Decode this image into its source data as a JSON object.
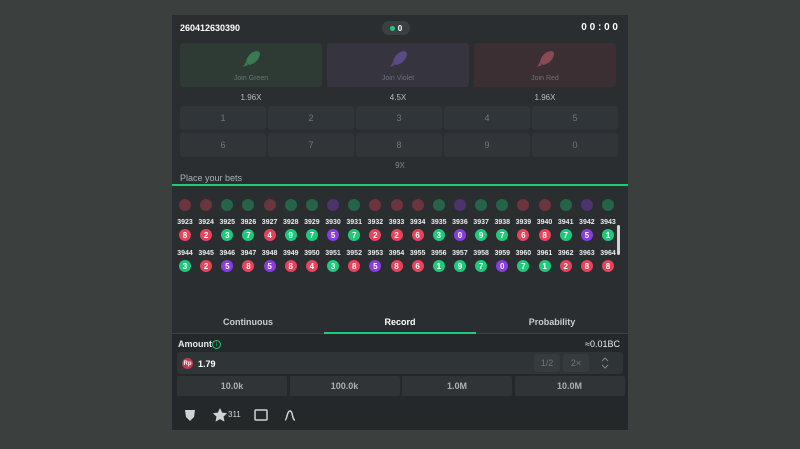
{
  "header": {
    "round_id": "260412630390",
    "online_count": "0",
    "timer": "0 0 : 0 0"
  },
  "join_buttons": [
    {
      "label": "Join Green",
      "multiplier": "1.96X",
      "color": "green"
    },
    {
      "label": "Join Violet",
      "multiplier": "4.5X",
      "color": "violet"
    },
    {
      "label": "Join Red",
      "multiplier": "1.96X",
      "color": "red"
    }
  ],
  "number_grid": {
    "rows": [
      [
        "1",
        "2",
        "3",
        "4",
        "5"
      ],
      [
        "6",
        "7",
        "8",
        "9",
        "0"
      ]
    ],
    "multiplier": "9X"
  },
  "place_bets": "Place your bets",
  "history": {
    "rows": [
      {
        "items": [
          {
            "issue": "3923",
            "result": 8,
            "color": "red"
          },
          {
            "issue": "3924",
            "result": 2,
            "color": "red"
          },
          {
            "issue": "3925",
            "result": 3,
            "color": "green"
          },
          {
            "issue": "3926",
            "result": 7,
            "color": "green"
          },
          {
            "issue": "3927",
            "result": 4,
            "color": "red"
          },
          {
            "issue": "3928",
            "result": 9,
            "color": "green"
          },
          {
            "issue": "3929",
            "result": 7,
            "color": "green"
          },
          {
            "issue": "3930",
            "result": 5,
            "color": "violet"
          },
          {
            "issue": "3931",
            "result": 7,
            "color": "green"
          },
          {
            "issue": "3932",
            "result": 2,
            "color": "red"
          },
          {
            "issue": "3933",
            "result": 2,
            "color": "red"
          },
          {
            "issue": "3934",
            "result": 6,
            "color": "red"
          },
          {
            "issue": "3935",
            "result": 3,
            "color": "green"
          },
          {
            "issue": "3936",
            "result": 0,
            "color": "violet"
          },
          {
            "issue": "3937",
            "result": 9,
            "color": "green"
          },
          {
            "issue": "3938",
            "result": 7,
            "color": "green"
          },
          {
            "issue": "3939",
            "result": 6,
            "color": "red"
          },
          {
            "issue": "3940",
            "result": 8,
            "color": "red"
          },
          {
            "issue": "3941",
            "result": 7,
            "color": "green"
          },
          {
            "issue": "3942",
            "result": 5,
            "color": "violet"
          },
          {
            "issue": "3943",
            "result": 1,
            "color": "green"
          }
        ]
      },
      {
        "items": [
          {
            "issue": "3944",
            "result": 3,
            "color": "green"
          },
          {
            "issue": "3945",
            "result": 2,
            "color": "red"
          },
          {
            "issue": "3946",
            "result": 5,
            "color": "violet"
          },
          {
            "issue": "3947",
            "result": 8,
            "color": "red"
          },
          {
            "issue": "3948",
            "result": 5,
            "color": "violet"
          },
          {
            "issue": "3949",
            "result": 8,
            "color": "red"
          },
          {
            "issue": "3950",
            "result": 4,
            "color": "red"
          },
          {
            "issue": "3951",
            "result": 3,
            "color": "green"
          },
          {
            "issue": "3952",
            "result": 8,
            "color": "red"
          },
          {
            "issue": "3953",
            "result": 5,
            "color": "violet"
          },
          {
            "issue": "3954",
            "result": 8,
            "color": "red"
          },
          {
            "issue": "3955",
            "result": 6,
            "color": "red"
          },
          {
            "issue": "3956",
            "result": 1,
            "color": "green"
          },
          {
            "issue": "3957",
            "result": 9,
            "color": "green"
          },
          {
            "issue": "3958",
            "result": 7,
            "color": "green"
          },
          {
            "issue": "3959",
            "result": 0,
            "color": "violet"
          },
          {
            "issue": "3960",
            "result": 7,
            "color": "green"
          },
          {
            "issue": "3961",
            "result": 1,
            "color": "green"
          },
          {
            "issue": "3962",
            "result": 2,
            "color": "red"
          },
          {
            "issue": "3963",
            "result": 8,
            "color": "red"
          },
          {
            "issue": "3964",
            "result": 8,
            "color": "red"
          }
        ]
      }
    ]
  },
  "tabs": {
    "items": [
      "Continuous",
      "Record",
      "Probability"
    ],
    "active": 1
  },
  "amount": {
    "label": "Amount",
    "conversion": "≈0.01BC",
    "currency": "Rp",
    "value": "1.79",
    "half": "1/2",
    "double": "2×"
  },
  "quick_amounts": [
    "10.0k",
    "100.0k",
    "1.0M",
    "10.0M"
  ],
  "footer": {
    "favorites": "311"
  }
}
